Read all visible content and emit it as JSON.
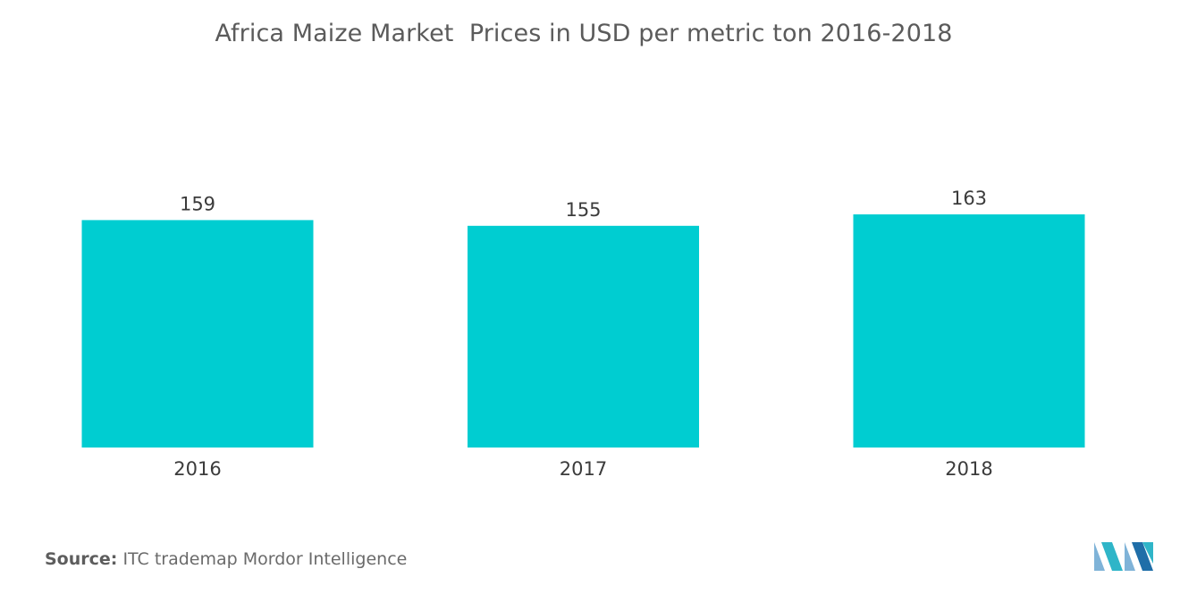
{
  "chart_data": {
    "type": "bar",
    "title": "Africa Maize Market  Prices in USD per metric ton 2016-2018",
    "categories": [
      "2016",
      "2017",
      "2018"
    ],
    "values": [
      159,
      155,
      163
    ],
    "value_labels": [
      "159",
      "155",
      "163"
    ],
    "xlabel": "",
    "ylabel": "",
    "ylim": [
      0,
      163
    ],
    "grid": false,
    "bar_color": "#00cdd1",
    "label_color": "#3b3b3b"
  },
  "source": {
    "label": "Source:",
    "text": "ITC trademap Mordor Intelligence"
  },
  "logo": {
    "icon": "mordor-intelligence-logo-icon",
    "colors": [
      "#7fb3d8",
      "#2fb5c8",
      "#1f6ea8"
    ]
  }
}
